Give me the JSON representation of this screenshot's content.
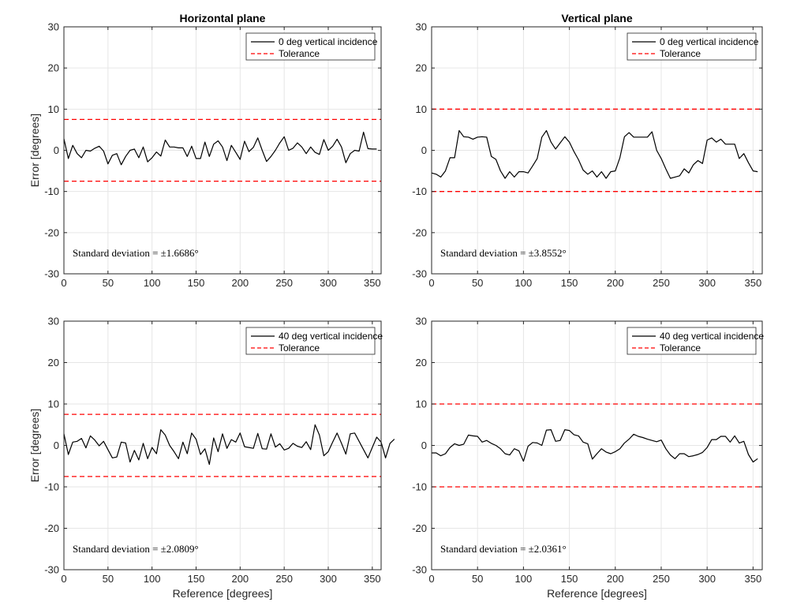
{
  "colors": {
    "series": "#000000",
    "tolerance": "#ff0000",
    "grid": "#e6e6e6",
    "axis": "#262626"
  },
  "chart_data": [
    {
      "type": "line",
      "title": "Horizontal plane",
      "xlabel": "",
      "ylabel": "Error [degrees]",
      "xlim": [
        0,
        360
      ],
      "ylim": [
        -30,
        30
      ],
      "xticks": [
        "0",
        "50",
        "100",
        "150",
        "200",
        "250",
        "300",
        "350"
      ],
      "yticks": [
        "30",
        "20",
        "10",
        "0",
        "-10",
        "-20",
        "-30"
      ],
      "grid": true,
      "legend": {
        "location": "top-right",
        "entries": [
          "0 deg vertical incidence",
          "Tolerance"
        ]
      },
      "annotation": "Standard deviation = ±1.6686°",
      "tolerance": 7.5,
      "x_start": 0,
      "x_step": 5,
      "series": [
        {
          "name": "0 deg vertical incidence",
          "values": [
            2.8,
            -2.0,
            1.2,
            -0.8,
            -1.8,
            0.0,
            -0.2,
            0.5,
            1.0,
            -0.2,
            -3.3,
            -1.2,
            -0.8,
            -3.5,
            -1.5,
            0.0,
            0.3,
            -1.8,
            0.8,
            -2.8,
            -1.8,
            -0.4,
            -1.4,
            2.5,
            0.8,
            0.8,
            0.6,
            0.6,
            -1.5,
            1.0,
            -2.0,
            -2.0,
            2.0,
            -1.5,
            1.5,
            2.3,
            0.8,
            -2.5,
            1.2,
            -0.5,
            -2.2,
            2.2,
            -0.3,
            0.7,
            3.0,
            0.0,
            -2.7,
            -1.5,
            0.0,
            1.8,
            3.3,
            0.0,
            0.5,
            1.8,
            0.8,
            -0.8,
            0.8,
            -0.5,
            -1.0,
            2.6,
            0.0,
            1.0,
            2.7,
            0.8,
            -3.0,
            -0.8,
            0.0,
            -0.2,
            4.4,
            0.4,
            0.3,
            0.3
          ]
        },
        {
          "name": "Tolerance",
          "values": [
            7.5,
            -7.5
          ]
        }
      ]
    },
    {
      "type": "line",
      "title": "Vertical plane",
      "xlabel": "",
      "ylabel": "",
      "xlim": [
        0,
        360
      ],
      "ylim": [
        -30,
        30
      ],
      "xticks": [
        "0",
        "50",
        "100",
        "150",
        "200",
        "250",
        "300",
        "350"
      ],
      "yticks": [
        "30",
        "20",
        "10",
        "0",
        "-10",
        "-20",
        "-30"
      ],
      "grid": true,
      "legend": {
        "location": "top-right",
        "entries": [
          "0 deg vertical incidence",
          "Tolerance"
        ]
      },
      "annotation": "Standard deviation = ±3.8552°",
      "tolerance": 10,
      "x_start": 0,
      "x_step": 5,
      "series": [
        {
          "name": "0 deg vertical incidence",
          "values": [
            -5.5,
            -5.8,
            -6.5,
            -5.0,
            -1.8,
            -1.8,
            4.8,
            3.3,
            3.2,
            2.7,
            3.2,
            3.3,
            3.2,
            -1.5,
            -2.2,
            -5.0,
            -6.8,
            -5.2,
            -6.5,
            -5.2,
            -5.2,
            -5.5,
            -3.8,
            -2.0,
            3.2,
            4.8,
            2.0,
            0.3,
            1.8,
            3.3,
            2.0,
            -0.3,
            -2.3,
            -4.8,
            -5.8,
            -5.0,
            -6.5,
            -5.2,
            -6.8,
            -5.2,
            -5.0,
            -1.8,
            3.3,
            4.3,
            3.2,
            3.2,
            3.2,
            3.2,
            4.5,
            0.0,
            -2.0,
            -4.5,
            -6.8,
            -6.5,
            -6.2,
            -4.5,
            -5.5,
            -3.5,
            -2.5,
            -3.2,
            2.5,
            3.0,
            2.0,
            2.7,
            1.5,
            1.5,
            1.5,
            -2.0,
            -0.8,
            -3.0,
            -5.0,
            -5.2
          ]
        },
        {
          "name": "Tolerance",
          "values": [
            10,
            -10
          ]
        }
      ]
    },
    {
      "type": "line",
      "title": "",
      "xlabel": "Reference [degrees]",
      "ylabel": "Error [degrees]",
      "xlim": [
        0,
        360
      ],
      "ylim": [
        -30,
        30
      ],
      "xticks": [
        "0",
        "50",
        "100",
        "150",
        "200",
        "250",
        "300",
        "350"
      ],
      "yticks": [
        "30",
        "20",
        "10",
        "0",
        "-10",
        "-20",
        "-30"
      ],
      "grid": true,
      "legend": {
        "location": "top-right",
        "entries": [
          "40 deg vertical incidence",
          "Tolerance"
        ]
      },
      "annotation": "Standard deviation = ±2.0809°",
      "tolerance": 7.5,
      "x_start": 0,
      "x_step": 5,
      "series": [
        {
          "name": "40 deg vertical incidence",
          "values": [
            2.8,
            -2.2,
            0.8,
            1.0,
            1.7,
            -0.6,
            2.3,
            1.3,
            -0.1,
            1.0,
            -1.0,
            -3.0,
            -2.8,
            0.8,
            0.6,
            -4.0,
            -1.2,
            -3.5,
            0.5,
            -3.2,
            -0.5,
            -2.0,
            3.8,
            2.5,
            0.0,
            -1.5,
            -3.2,
            0.8,
            -2.0,
            3.0,
            1.5,
            -2.2,
            -0.8,
            -4.6,
            1.8,
            -1.5,
            2.8,
            -0.7,
            1.4,
            0.8,
            3.0,
            -0.3,
            -0.5,
            -0.7,
            2.9,
            -0.8,
            -0.9,
            2.8,
            -0.4,
            0.4,
            -1.1,
            -0.7,
            0.5,
            -0.2,
            -0.5,
            0.9,
            -1.0,
            5.0,
            2.5,
            -2.5,
            -1.5,
            0.8,
            3.0,
            0.5,
            -2.1,
            2.8,
            3.0,
            1.0,
            -1.0,
            -3.0,
            -0.5,
            2.0,
            0.8,
            -3.0,
            0.5,
            1.5
          ]
        },
        {
          "name": "Tolerance",
          "values": [
            7.5,
            -7.5
          ]
        }
      ]
    },
    {
      "type": "line",
      "title": "",
      "xlabel": "Reference [degrees]",
      "ylabel": "",
      "xlim": [
        0,
        360
      ],
      "ylim": [
        -30,
        30
      ],
      "xticks": [
        "0",
        "50",
        "100",
        "150",
        "200",
        "250",
        "300",
        "350"
      ],
      "yticks": [
        "30",
        "20",
        "10",
        "0",
        "-10",
        "-20",
        "-30"
      ],
      "grid": true,
      "legend": {
        "location": "top-right",
        "entries": [
          "40 deg vertical incidence",
          "Tolerance"
        ]
      },
      "annotation": "Standard deviation = ±2.0361°",
      "tolerance": 10,
      "x_start": 0,
      "x_step": 5,
      "series": [
        {
          "name": "40 deg vertical incidence",
          "values": [
            -1.8,
            -1.8,
            -2.5,
            -2.0,
            -0.5,
            0.4,
            0.0,
            0.3,
            2.5,
            2.3,
            2.2,
            0.8,
            1.2,
            0.5,
            0.0,
            -0.8,
            -2.0,
            -2.3,
            -0.8,
            -1.3,
            -3.8,
            -0.2,
            0.7,
            0.6,
            0.0,
            3.7,
            3.8,
            1.0,
            1.2,
            3.8,
            3.6,
            2.6,
            2.3,
            0.8,
            0.4,
            -3.3,
            -2.0,
            -0.8,
            -1.6,
            -2.0,
            -1.5,
            -0.8,
            0.6,
            1.5,
            2.7,
            2.2,
            1.9,
            1.5,
            1.2,
            0.9,
            1.3,
            -0.8,
            -2.3,
            -3.2,
            -2.0,
            -2.0,
            -2.7,
            -2.5,
            -2.2,
            -1.7,
            -0.5,
            1.4,
            1.4,
            2.2,
            2.2,
            0.8,
            2.3,
            0.6,
            1.0,
            -2.2,
            -4.0,
            -3.2
          ]
        },
        {
          "name": "Tolerance",
          "values": [
            10,
            -10
          ]
        }
      ]
    }
  ]
}
